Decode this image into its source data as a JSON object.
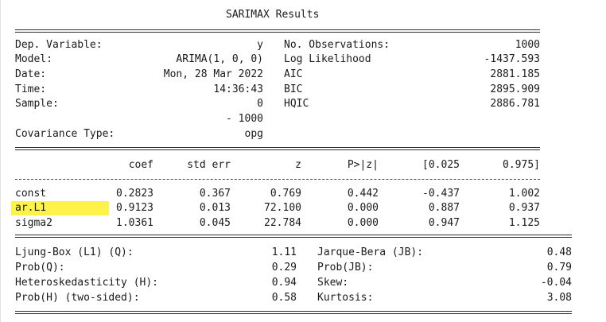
{
  "title": "SARIMAX Results",
  "info_left": [
    {
      "label": "Dep. Variable:",
      "value": "y"
    },
    {
      "label": "Model:",
      "value": "ARIMA(1, 0, 0)"
    },
    {
      "label": "Date:",
      "value": "Mon, 28 Mar 2022"
    },
    {
      "label": "Time:",
      "value": "14:36:43"
    },
    {
      "label": "Sample:",
      "value": "0"
    },
    {
      "label": "",
      "value": "- 1000"
    },
    {
      "label": "Covariance Type:",
      "value": "opg"
    }
  ],
  "info_right": [
    {
      "label": "No. Observations:",
      "value": "1000"
    },
    {
      "label": "Log Likelihood",
      "value": "-1437.593"
    },
    {
      "label": "AIC",
      "value": "2881.185"
    },
    {
      "label": "BIC",
      "value": "2895.909"
    },
    {
      "label": "HQIC",
      "value": "2886.781"
    }
  ],
  "coef_table": {
    "headers": [
      "coef",
      "std err",
      "z",
      "P>|z|",
      "[0.025",
      "0.975]"
    ],
    "rows": [
      {
        "name": "const",
        "cells": [
          "0.2823",
          "0.367",
          "0.769",
          "0.442",
          "-0.437",
          "1.002"
        ]
      },
      {
        "name": "ar.L1",
        "cells": [
          "0.9123",
          "0.013",
          "72.100",
          "0.000",
          "0.887",
          "0.937"
        ],
        "highlight": true
      },
      {
        "name": "sigma2",
        "cells": [
          "1.0361",
          "0.045",
          "22.784",
          "0.000",
          "0.947",
          "1.125"
        ]
      }
    ]
  },
  "diagnostics": [
    {
      "left_label": "Ljung-Box (L1) (Q):",
      "left_value": "1.11",
      "right_label": "Jarque-Bera (JB):",
      "right_value": "0.48"
    },
    {
      "left_label": "Prob(Q):",
      "left_value": "0.29",
      "right_label": "Prob(JB):",
      "right_value": "0.79"
    },
    {
      "left_label": "Heteroskedasticity (H):",
      "left_value": "0.94",
      "right_label": "Skew:",
      "right_value": "-0.04"
    },
    {
      "left_label": "Prob(H) (two-sided):",
      "left_value": "0.58",
      "right_label": "Kurtosis:",
      "right_value": "3.08"
    }
  ],
  "colors": {
    "highlight": "#fff34a",
    "text": "#1a1a1a",
    "background": "#ffffff"
  }
}
